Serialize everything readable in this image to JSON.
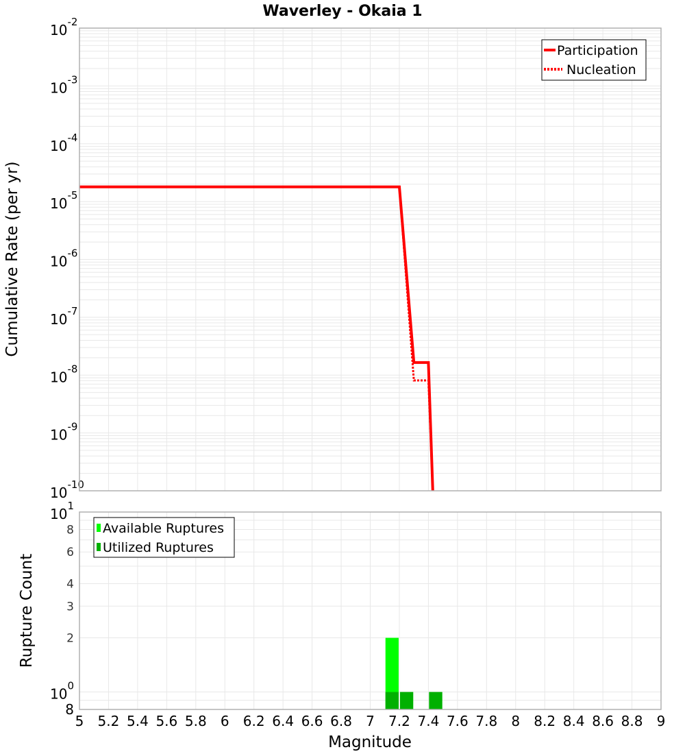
{
  "chart_data": [
    {
      "type": "line",
      "title": "Waverley - Okaia 1",
      "xlabel": "Magnitude",
      "ylabel": "Cumulative Rate (per yr)",
      "yscale": "log",
      "xlim": [
        5,
        9
      ],
      "ylim": [
        1e-10,
        0.01
      ],
      "y_ticks": [
        {
          "base": "10",
          "exp": "-2"
        },
        {
          "base": "10",
          "exp": "-3"
        },
        {
          "base": "10",
          "exp": "-4"
        },
        {
          "base": "10",
          "exp": "-5"
        },
        {
          "base": "10",
          "exp": "-6"
        },
        {
          "base": "10",
          "exp": "-7"
        },
        {
          "base": "10",
          "exp": "-8"
        },
        {
          "base": "10",
          "exp": "-9"
        },
        {
          "base": "10",
          "exp": "-10"
        }
      ],
      "grid": true,
      "legend_position": "upper right",
      "series": [
        {
          "name": "Participation",
          "style": "solid",
          "color": "#ff0000",
          "x": [
            5.0,
            7.2,
            7.3,
            7.4,
            7.43
          ],
          "y": [
            1.8e-05,
            1.8e-05,
            1.65e-08,
            1.65e-08,
            1e-10
          ]
        },
        {
          "name": "Nucleation",
          "style": "dotted",
          "color": "#ff0000",
          "x": [
            5.0,
            7.2,
            7.3,
            7.4,
            7.43
          ],
          "y": [
            1.8e-05,
            1.8e-05,
            8.1e-09,
            8.1e-09,
            1e-10
          ]
        }
      ]
    },
    {
      "type": "bar",
      "title": "",
      "xlabel": "Magnitude",
      "ylabel": "Rupture Count",
      "yscale": "log",
      "xlim": [
        5,
        9
      ],
      "ylim": [
        0.8,
        10
      ],
      "x_ticks": [
        "5",
        "5.2",
        "5.4",
        "5.6",
        "5.8",
        "6",
        "6.2",
        "6.4",
        "6.6",
        "6.8",
        "7",
        "7.2",
        "7.4",
        "7.6",
        "7.8",
        "8",
        "8.2",
        "8.4",
        "8.6",
        "8.8",
        "9"
      ],
      "y_major_ticks": [
        {
          "base": "10",
          "exp": "1",
          "value": 10
        },
        {
          "base": "10",
          "exp": "0",
          "value": 1
        }
      ],
      "y_minor_ticks": [
        "8",
        "6",
        "4",
        "3",
        "2"
      ],
      "y_bottom_label": "8",
      "grid": true,
      "legend_position": "upper left",
      "categories": [
        "7.1-7.2",
        "7.2-7.3",
        "7.4-7.5"
      ],
      "bins": [
        {
          "x0": 7.1,
          "x1": 7.2
        },
        {
          "x0": 7.2,
          "x1": 7.3
        },
        {
          "x0": 7.4,
          "x1": 7.5
        }
      ],
      "series": [
        {
          "name": "Available Ruptures",
          "color": "#00ff00",
          "values": [
            2,
            1,
            1
          ]
        },
        {
          "name": "Utilized Ruptures",
          "color": "#00b000",
          "values": [
            1,
            1,
            1
          ]
        }
      ]
    }
  ],
  "top_plot": {
    "title": "Waverley - Okaia 1",
    "ylabel": "Cumulative Rate (per yr)",
    "legend": [
      {
        "label": "Participation",
        "color": "#ff0000",
        "style": "solid"
      },
      {
        "label": "Nucleation",
        "color": "#ff0000",
        "style": "dotted"
      }
    ]
  },
  "bottom_plot": {
    "ylabel": "Rupture Count",
    "xlabel": "Magnitude",
    "legend": [
      {
        "label": "Available Ruptures",
        "color": "#00ff00"
      },
      {
        "label": "Utilized Ruptures",
        "color": "#00b000"
      }
    ]
  }
}
